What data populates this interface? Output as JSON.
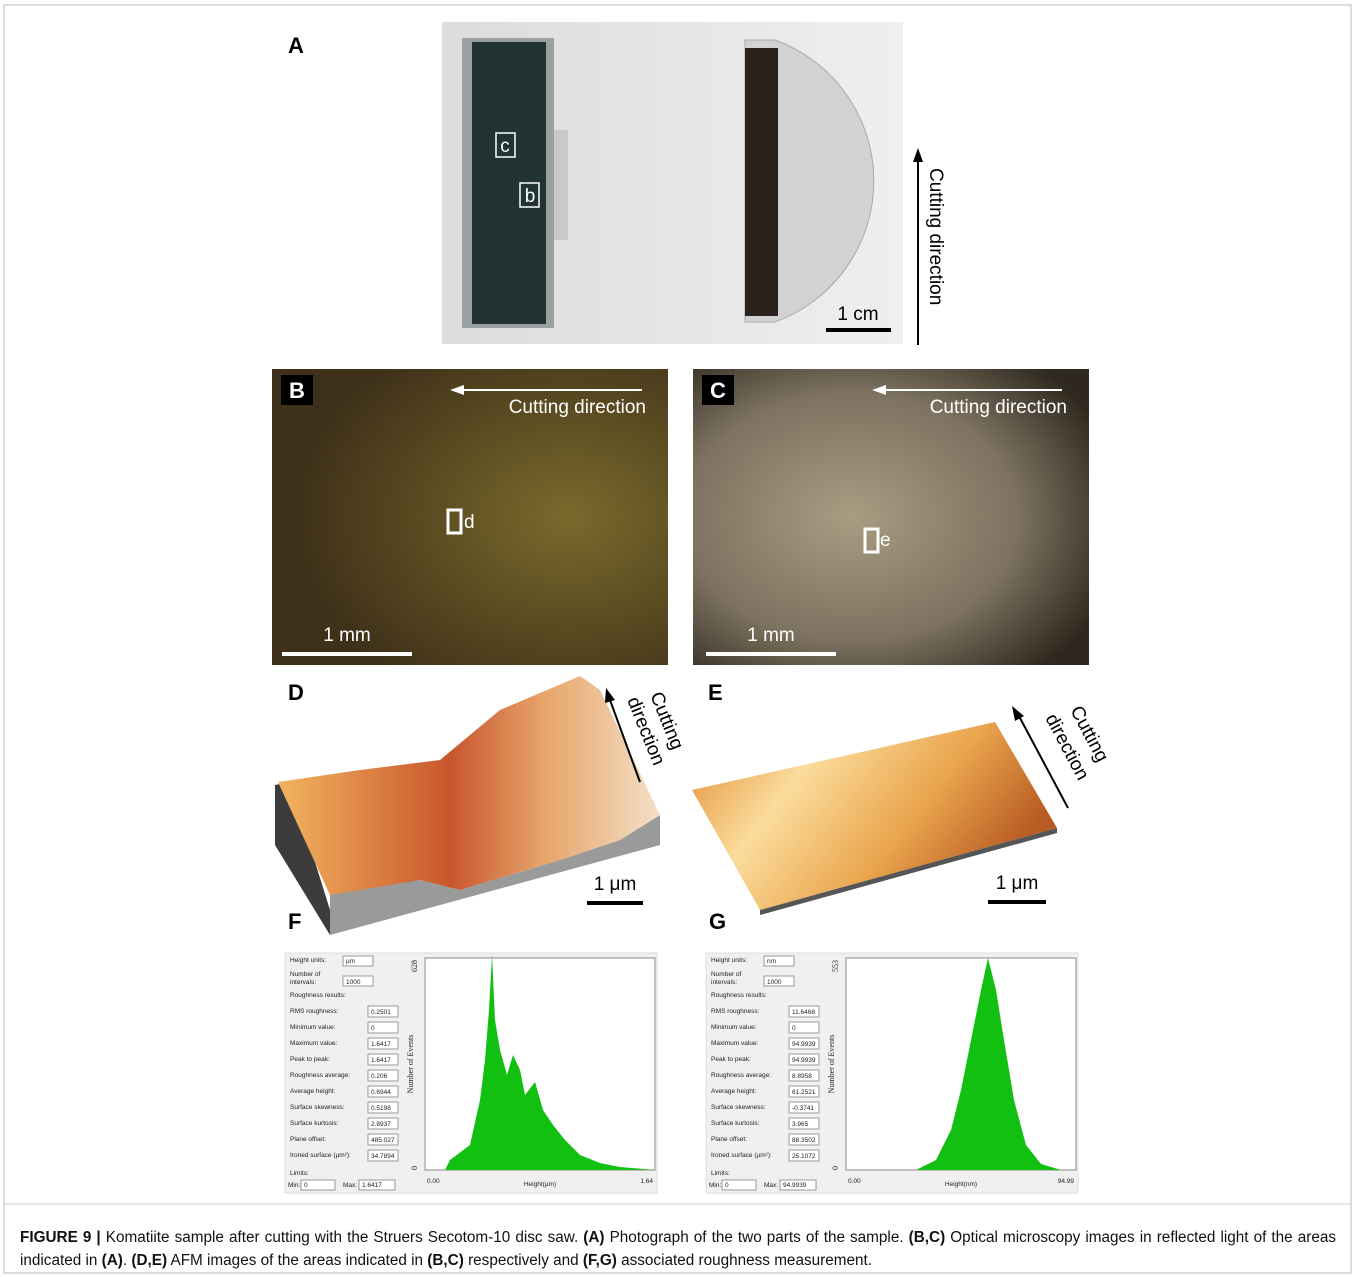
{
  "panels": {
    "A": {
      "label": "A",
      "boxes": [
        "c",
        "b"
      ],
      "scale": "1 cm",
      "direction": "Cutting direction"
    },
    "B": {
      "label": "B",
      "box": "d",
      "scale": "1 mm",
      "direction": "Cutting direction"
    },
    "C": {
      "label": "C",
      "box": "e",
      "scale": "1 mm",
      "direction": "Cutting direction"
    },
    "D": {
      "label": "D",
      "scale": "1 μm",
      "direction": [
        "Cutting",
        "direction"
      ]
    },
    "E": {
      "label": "E",
      "scale": "1 μm",
      "direction": [
        "Cutting",
        "direction"
      ]
    }
  },
  "roughness": [
    {
      "label": "F",
      "height_units_label": "Height units:",
      "height_units": "µm",
      "intervals_label": [
        "Number of",
        "intervals:"
      ],
      "intervals": "1000",
      "results_label": "Roughness results:",
      "fields": [
        [
          "RMS roughness:",
          "0.2501"
        ],
        [
          "Minimum value:",
          "0"
        ],
        [
          "Maximum value:",
          "1.6417"
        ],
        [
          "Peak  to peak:",
          "1.6417"
        ],
        [
          "Roughness average:",
          "0.206"
        ],
        [
          "Average height:",
          "0.6944"
        ],
        [
          "Surface skewness:",
          "0.5198"
        ],
        [
          "Surface kurtosis:",
          "2.8937"
        ],
        [
          "Plane offset:",
          "485.027"
        ],
        [
          "Ironed surface (µm²):",
          "34.7894"
        ]
      ],
      "limits_label": "Limits:",
      "min_label": "Min:",
      "min": "0",
      "max_label": "Max:",
      "max": "1.6417",
      "y_top": "628",
      "y_bottom": "0",
      "y_axis": "Number of Events",
      "x_left": "0.00",
      "x_right": "1.64",
      "x_axis": "Height(µm)"
    },
    {
      "label": "G",
      "height_units_label": "Height units:",
      "height_units": "nm",
      "intervals_label": [
        "Number of",
        "intervals:"
      ],
      "intervals": "1000",
      "results_label": "Roughness results:",
      "fields": [
        [
          "RMS roughness:",
          "11.6468"
        ],
        [
          "Minimum value:",
          "0"
        ],
        [
          "Maximum value:",
          "94.9939"
        ],
        [
          "Peak  to peak:",
          "94.9939"
        ],
        [
          "Roughness average:",
          "8.8958"
        ],
        [
          "Average height:",
          "61.2521"
        ],
        [
          "Surface skewness:",
          "-0.3741"
        ],
        [
          "Surface kurtosis:",
          "3.965"
        ],
        [
          "Plane offset:",
          "88.3502"
        ],
        [
          "Ironed surface (µm²):",
          "25.1072"
        ]
      ],
      "limits_label": "Limits:",
      "min_label": "Min:",
      "min": "0",
      "max_label": "Max:",
      "max": "94.9939",
      "y_top": "553",
      "y_bottom": "0",
      "y_axis": "Number of Events",
      "x_left": "0.00",
      "x_right": "94.99",
      "x_axis": "Height(nm)"
    }
  ],
  "caption": [
    {
      "text": "FIGURE 9 | ",
      "bold": true
    },
    {
      "text": "Komatiite sample after cutting with the Struers Secotom-10 disc saw. ",
      "bold": false
    },
    {
      "text": "(A)",
      "bold": true
    },
    {
      "text": " Photograph of the two parts of the sample. ",
      "bold": false
    },
    {
      "text": "(B,C)",
      "bold": true
    },
    {
      "text": " Optical microscopy images in reflected light of the areas indicated in ",
      "bold": false
    },
    {
      "text": "(A)",
      "bold": true
    },
    {
      "text": ". ",
      "bold": false
    },
    {
      "text": "(D,E)",
      "bold": true
    },
    {
      "text": " AFM images of the areas indicated in ",
      "bold": false
    },
    {
      "text": "(B,C)",
      "bold": true
    },
    {
      "text": " respectively and ",
      "bold": false
    },
    {
      "text": "(F,G)",
      "bold": true
    },
    {
      "text": " associated roughness measurement.",
      "bold": false
    }
  ]
}
